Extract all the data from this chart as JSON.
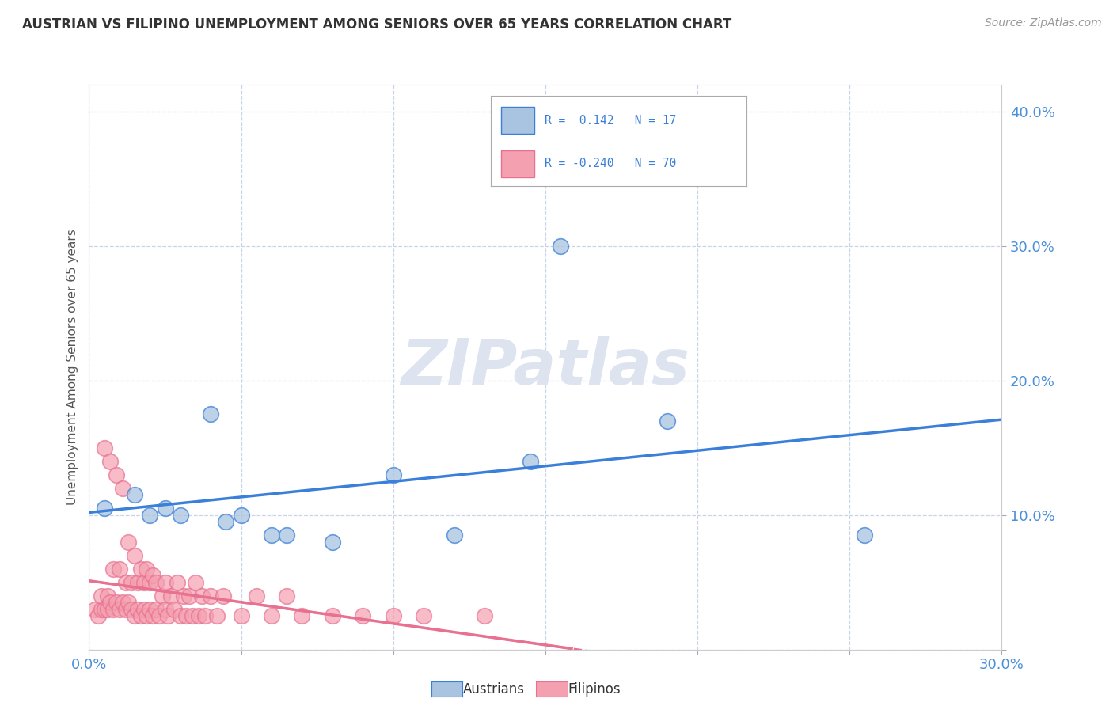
{
  "title": "AUSTRIAN VS FILIPINO UNEMPLOYMENT AMONG SENIORS OVER 65 YEARS CORRELATION CHART",
  "source": "Source: ZipAtlas.com",
  "ylabel": "Unemployment Among Seniors over 65 years",
  "xlim": [
    0.0,
    0.3
  ],
  "ylim": [
    0.0,
    0.42
  ],
  "xticks": [
    0.0,
    0.05,
    0.1,
    0.15,
    0.2,
    0.25,
    0.3
  ],
  "yticks": [
    0.0,
    0.1,
    0.2,
    0.3,
    0.4
  ],
  "xtick_labels_left": [
    "0.0%",
    "",
    "",
    "",
    "",
    "",
    ""
  ],
  "xtick_labels_right": [
    "",
    "",
    "",
    "",
    "",
    "",
    "30.0%"
  ],
  "ytick_labels_right": [
    "",
    "10.0%",
    "20.0%",
    "30.0%",
    "40.0%"
  ],
  "r_austrians": 0.142,
  "n_austrians": 17,
  "r_filipinos": -0.24,
  "n_filipinos": 70,
  "austrian_color": "#a8c4e0",
  "filipino_color": "#f4a0b0",
  "trend_austrian_color": "#3a7fd9",
  "trend_filipino_color": "#e87090",
  "watermark_color": "#dde4f0",
  "austrians_x": [
    0.005,
    0.015,
    0.02,
    0.025,
    0.03,
    0.04,
    0.045,
    0.05,
    0.06,
    0.065,
    0.08,
    0.1,
    0.12,
    0.145,
    0.155,
    0.19,
    0.255
  ],
  "austrians_y": [
    0.105,
    0.115,
    0.1,
    0.105,
    0.1,
    0.175,
    0.095,
    0.1,
    0.085,
    0.085,
    0.08,
    0.13,
    0.085,
    0.14,
    0.3,
    0.17,
    0.085
  ],
  "filipinos_x": [
    0.002,
    0.003,
    0.004,
    0.004,
    0.005,
    0.005,
    0.006,
    0.006,
    0.007,
    0.007,
    0.008,
    0.008,
    0.009,
    0.009,
    0.01,
    0.01,
    0.011,
    0.011,
    0.012,
    0.012,
    0.013,
    0.013,
    0.014,
    0.014,
    0.015,
    0.015,
    0.016,
    0.016,
    0.017,
    0.017,
    0.018,
    0.018,
    0.019,
    0.019,
    0.02,
    0.02,
    0.021,
    0.021,
    0.022,
    0.022,
    0.023,
    0.024,
    0.025,
    0.025,
    0.026,
    0.027,
    0.028,
    0.029,
    0.03,
    0.031,
    0.032,
    0.033,
    0.034,
    0.035,
    0.036,
    0.037,
    0.038,
    0.04,
    0.042,
    0.044,
    0.05,
    0.055,
    0.06,
    0.065,
    0.07,
    0.08,
    0.09,
    0.1,
    0.11,
    0.13
  ],
  "filipinos_y": [
    0.03,
    0.025,
    0.03,
    0.04,
    0.03,
    0.15,
    0.03,
    0.04,
    0.035,
    0.14,
    0.03,
    0.06,
    0.035,
    0.13,
    0.03,
    0.06,
    0.035,
    0.12,
    0.03,
    0.05,
    0.035,
    0.08,
    0.03,
    0.05,
    0.025,
    0.07,
    0.03,
    0.05,
    0.025,
    0.06,
    0.03,
    0.05,
    0.025,
    0.06,
    0.03,
    0.05,
    0.025,
    0.055,
    0.03,
    0.05,
    0.025,
    0.04,
    0.03,
    0.05,
    0.025,
    0.04,
    0.03,
    0.05,
    0.025,
    0.04,
    0.025,
    0.04,
    0.025,
    0.05,
    0.025,
    0.04,
    0.025,
    0.04,
    0.025,
    0.04,
    0.025,
    0.04,
    0.025,
    0.04,
    0.025,
    0.025,
    0.025,
    0.025,
    0.025,
    0.025
  ],
  "background_color": "#ffffff",
  "grid_color": "#c8d4e8",
  "legend_austrian_label": "Austrians",
  "legend_filipino_label": "Filipinos"
}
